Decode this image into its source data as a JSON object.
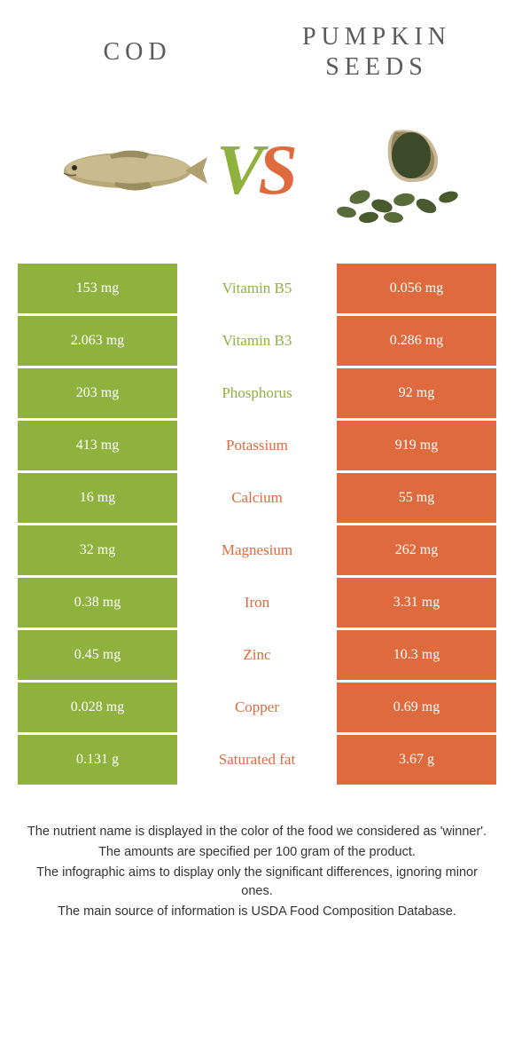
{
  "colors": {
    "left": "#8fb23e",
    "right": "#df6a3e",
    "text": "#5a5a5a"
  },
  "header": {
    "left": "COD",
    "right": "PUMPKIN SEEDS"
  },
  "vs": {
    "v": "V",
    "s": "S"
  },
  "rows": [
    {
      "left": "153 mg",
      "mid": "Vitamin B5",
      "right": "0.056 mg",
      "winner": "left"
    },
    {
      "left": "2.063 mg",
      "mid": "Vitamin B3",
      "right": "0.286 mg",
      "winner": "left"
    },
    {
      "left": "203 mg",
      "mid": "Phosphorus",
      "right": "92 mg",
      "winner": "left"
    },
    {
      "left": "413 mg",
      "mid": "Potassium",
      "right": "919 mg",
      "winner": "right"
    },
    {
      "left": "16 mg",
      "mid": "Calcium",
      "right": "55 mg",
      "winner": "right"
    },
    {
      "left": "32 mg",
      "mid": "Magnesium",
      "right": "262 mg",
      "winner": "right"
    },
    {
      "left": "0.38 mg",
      "mid": "Iron",
      "right": "3.31 mg",
      "winner": "right"
    },
    {
      "left": "0.45 mg",
      "mid": "Zinc",
      "right": "10.3 mg",
      "winner": "right"
    },
    {
      "left": "0.028 mg",
      "mid": "Copper",
      "right": "0.69 mg",
      "winner": "right"
    },
    {
      "left": "0.131 g",
      "mid": "Saturated fat",
      "right": "3.67 g",
      "winner": "right"
    }
  ],
  "footer": {
    "p1": "The nutrient name is displayed in the color of the food we considered as 'winner'.",
    "p2": "The amounts are specified per 100 gram of the product.",
    "p3": "The infographic aims to display only the significant differences, ignoring minor ones.",
    "p4": "The main source of information is USDA Food Composition Database."
  }
}
